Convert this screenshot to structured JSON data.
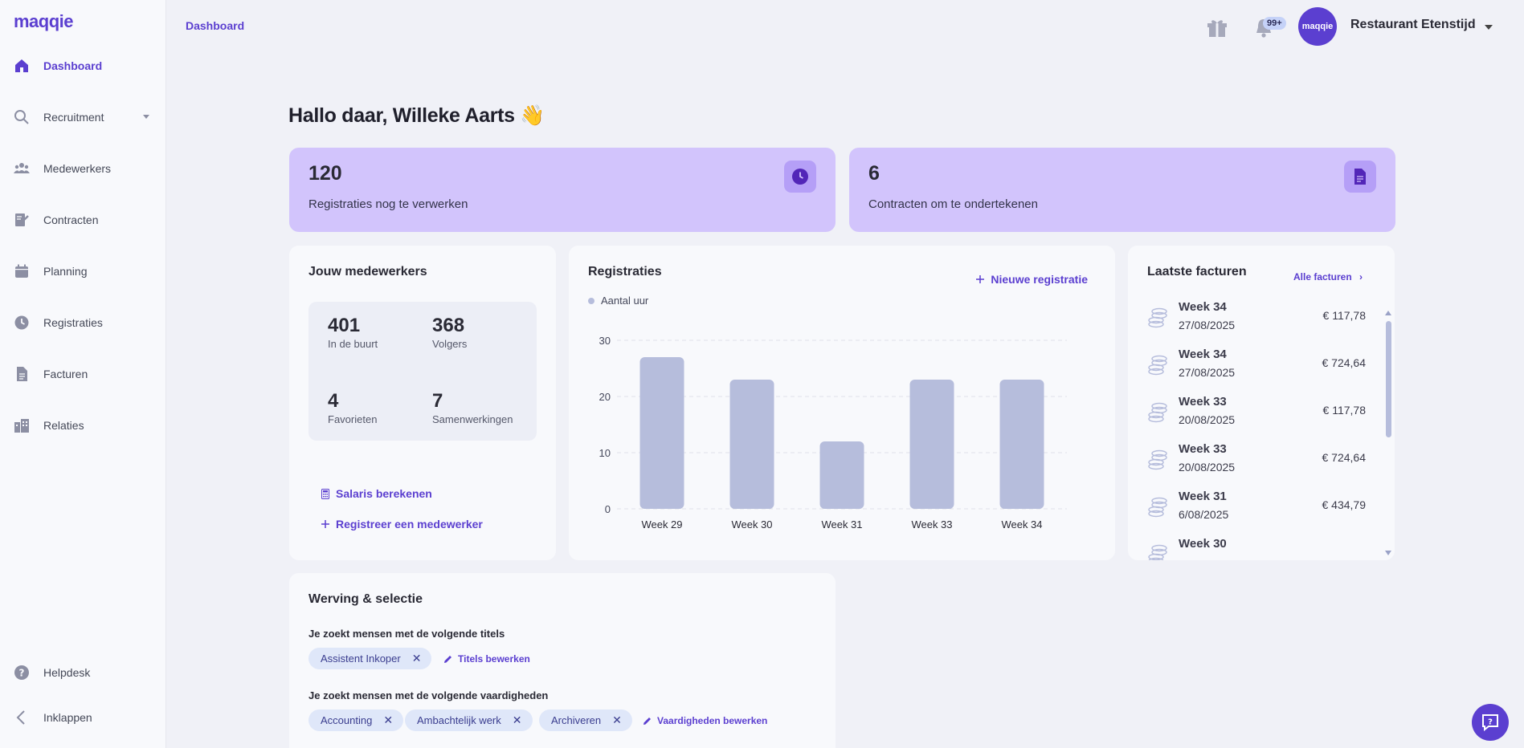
{
  "app": {
    "logo": "maqqie"
  },
  "sidebar": {
    "items": [
      {
        "label": "Dashboard",
        "icon": "home-icon"
      },
      {
        "label": "Recruitment",
        "icon": "search-icon"
      },
      {
        "label": "Medewerkers",
        "icon": "people-icon"
      },
      {
        "label": "Contracten",
        "icon": "contract-icon"
      },
      {
        "label": "Planning",
        "icon": "calendar-icon"
      },
      {
        "label": "Registraties",
        "icon": "clock-icon"
      },
      {
        "label": "Facturen",
        "icon": "document-icon"
      },
      {
        "label": "Relaties",
        "icon": "buildings-icon"
      }
    ],
    "footer": [
      {
        "label": "Helpdesk",
        "icon": "question-icon"
      },
      {
        "label": "Inklappen",
        "icon": "chevron-left-icon"
      }
    ]
  },
  "header": {
    "breadcrumb": "Dashboard",
    "notifications_badge": "99+",
    "avatar_text": "maqqie",
    "org_name": "Restaurant Etenstijd"
  },
  "greeting": "Hallo daar, Willeke Aarts 👋",
  "stats": [
    {
      "value": "120",
      "label": "Registraties nog te verwerken",
      "icon": "clock-icon"
    },
    {
      "value": "6",
      "label": "Contracten om te ondertekenen",
      "icon": "document-icon"
    }
  ],
  "employees": {
    "title": "Jouw medewerkers",
    "stats": [
      {
        "value": "401",
        "label": "In de buurt"
      },
      {
        "value": "368",
        "label": "Volgers"
      },
      {
        "value": "4",
        "label": "Favorieten"
      },
      {
        "value": "7",
        "label": "Samenwerkingen"
      }
    ],
    "salary_link": "Salaris berekenen",
    "register_link": "Registreer een medewerker"
  },
  "registrations": {
    "title": "Registraties",
    "new_button": "Nieuwe registratie",
    "legend": "Aantal uur"
  },
  "chart_data": {
    "type": "bar",
    "categories": [
      "Week 29",
      "Week 30",
      "Week 31",
      "Week 33",
      "Week 34"
    ],
    "series": [
      {
        "name": "Aantal uur",
        "values": [
          27,
          23,
          12,
          23,
          23
        ]
      }
    ],
    "yticks": [
      0,
      10,
      20,
      30
    ],
    "ylim": [
      0,
      30
    ],
    "grid": true,
    "color": "#b6bddc"
  },
  "invoices": {
    "title": "Laatste facturen",
    "all_link": "Alle facturen",
    "rows": [
      {
        "week": "Week 34",
        "date": "27/08/2025",
        "amount": "€ 117,78"
      },
      {
        "week": "Week 34",
        "date": "27/08/2025",
        "amount": "€ 724,64"
      },
      {
        "week": "Week 33",
        "date": "20/08/2025",
        "amount": "€ 117,78"
      },
      {
        "week": "Week 33",
        "date": "20/08/2025",
        "amount": "€ 724,64"
      },
      {
        "week": "Week 31",
        "date": "6/08/2025",
        "amount": "€ 434,79"
      },
      {
        "week": "Week 30",
        "date": "",
        "amount": ""
      }
    ]
  },
  "recruitment": {
    "title": "Werving & selectie",
    "titles_label": "Je zoekt mensen met de volgende titels",
    "titles": [
      "Assistent Inkoper"
    ],
    "titles_edit": "Titels bewerken",
    "skills_label": "Je zoekt mensen met de volgende vaardigheden",
    "skills": [
      "Accounting",
      "Ambachtelijk werk",
      "Archiveren"
    ],
    "skills_edit": "Vaardigheden bewerken"
  },
  "colors": {
    "accent": "#5b3fd0",
    "stat_card": "#d2c4fc",
    "bar": "#b6bddc"
  }
}
